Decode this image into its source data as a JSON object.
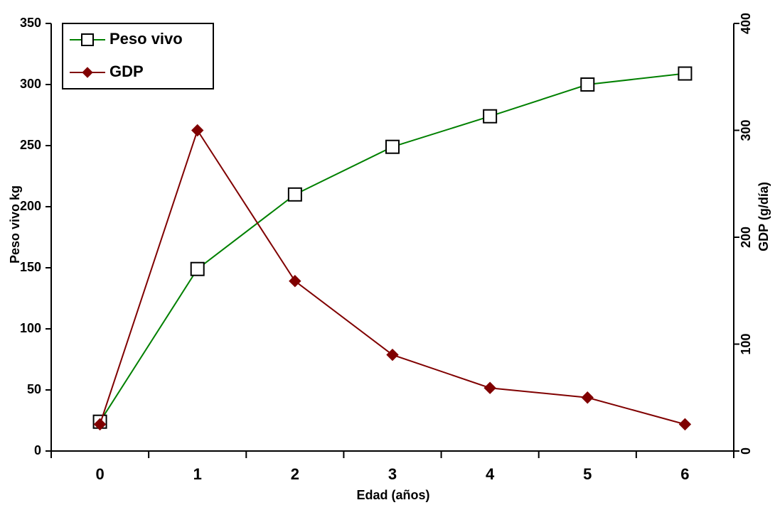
{
  "chart_data": {
    "type": "line",
    "categories": [
      "0",
      "1",
      "2",
      "3",
      "4",
      "5",
      "6"
    ],
    "x_label": "Edad (años)",
    "y_label": "Peso vivo kg",
    "y2_label": "GDP (g/día)",
    "series": [
      {
        "name": "Peso vivo",
        "color": "#008000",
        "marker": "square",
        "marker_color": "#ffffff",
        "values": [
          24,
          149,
          210,
          249,
          274,
          300,
          309
        ]
      },
      {
        "name": "GDP",
        "color": "#800000",
        "marker": "diamond",
        "marker_color": "#800000",
        "axis": "y2",
        "values": [
          25,
          300,
          159,
          90,
          59,
          50,
          25
        ]
      }
    ],
    "ylim": [
      0,
      350
    ],
    "yticks": [
      0,
      50,
      100,
      150,
      200,
      250,
      300,
      350
    ],
    "y2lim": [
      0,
      400
    ],
    "y2ticks": [
      0,
      100,
      200,
      300,
      400
    ],
    "legend": "upper left",
    "grid": false
  }
}
